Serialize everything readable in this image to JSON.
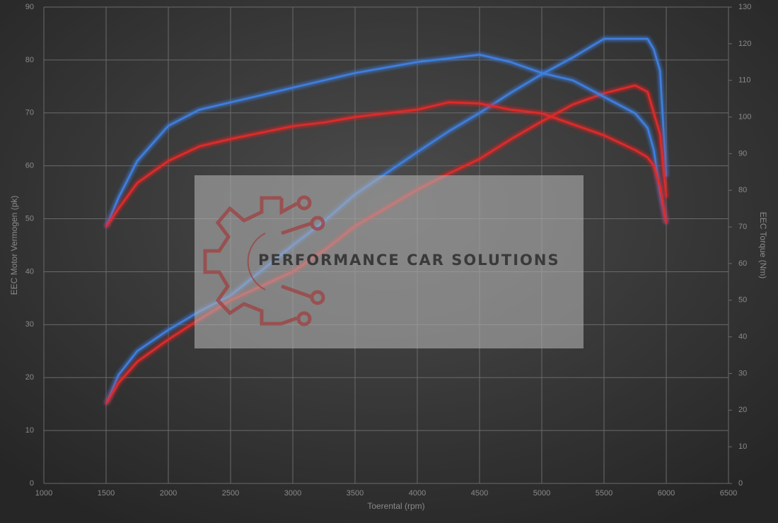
{
  "chart_data": {
    "type": "line",
    "x_label": "Toerental (rpm)",
    "y_label": "EEC Motor Vermogen (pk)",
    "y2_label": "EEC Torque (Nm)",
    "watermark": "PERFORMANCE CAR SOLUTIONS",
    "x": [
      1500,
      1600,
      1750,
      2000,
      2250,
      2500,
      3000,
      3250,
      3500,
      4000,
      4250,
      4500,
      4750,
      5000,
      5250,
      5500,
      5750,
      5850,
      5900,
      5950,
      6000
    ],
    "series": [
      {
        "color": "#3f7fe0",
        "values": [
          15,
          20.5,
          25,
          29,
          32.5,
          35.5,
          45,
          49.5,
          54.6,
          62.6,
          66.5,
          70,
          73.8,
          77.3,
          80.5,
          84,
          84,
          84,
          82,
          78,
          58
        ]
      },
      {
        "color": "#e02a2a",
        "values": [
          15,
          19,
          23,
          27.2,
          31,
          34.6,
          40,
          44,
          48.6,
          55.5,
          58.5,
          61.3,
          65,
          68.4,
          71.6,
          73.7,
          75.2,
          74,
          70,
          66,
          54
        ]
      },
      {
        "color": "#3f7fe0",
        "axis": "y2",
        "values": [
          70,
          78,
          88,
          97.6,
          102,
          104,
          108,
          110,
          112,
          115,
          116,
          117,
          115,
          112,
          110,
          105.5,
          101,
          97,
          91,
          79.5,
          71
        ]
      },
      {
        "color": "#e02a2a",
        "axis": "y2",
        "values": [
          70,
          75,
          82,
          88,
          92,
          94,
          97.5,
          98.5,
          100,
          102,
          104,
          103.7,
          102,
          101,
          98,
          95,
          91,
          89,
          86.7,
          81,
          71
        ]
      }
    ],
    "xlim": [
      1000,
      6500
    ],
    "xticks": [
      1000,
      1500,
      2000,
      2500,
      3000,
      3500,
      4000,
      4500,
      5000,
      5500,
      6000,
      6500
    ],
    "ylim": [
      0,
      90
    ],
    "yticks": [
      0,
      10,
      20,
      30,
      40,
      50,
      60,
      70,
      80,
      90
    ],
    "y2lim": [
      0,
      130
    ],
    "y2ticks": [
      0,
      10,
      20,
      30,
      40,
      50,
      60,
      70,
      80,
      90,
      100,
      110,
      120,
      130
    ],
    "grid": true
  }
}
